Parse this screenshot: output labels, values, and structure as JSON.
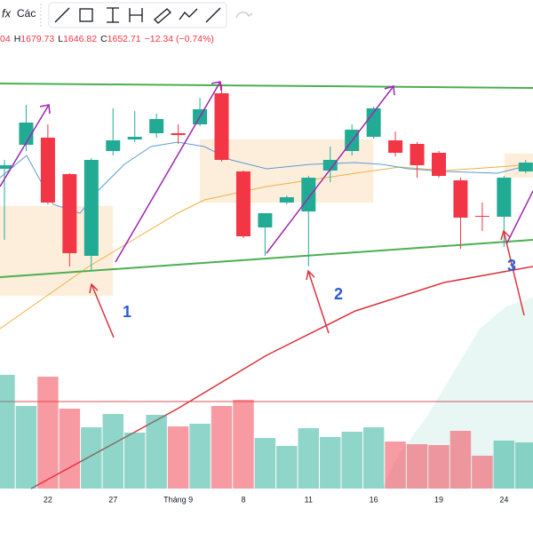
{
  "toolbar": {
    "formula": "fx",
    "label": "Các"
  },
  "header": {
    "open_tail": "04",
    "items": [
      [
        "H",
        "1679.73"
      ],
      [
        "L",
        "1646.82"
      ],
      [
        "C",
        "1652.71"
      ]
    ],
    "change": "−12.34 (−0.74%)"
  },
  "annotations": [
    "1",
    "2",
    "3"
  ],
  "chart_data": {
    "type": "candlestick",
    "categories": [
      null,
      null,
      "22",
      null,
      null,
      "27",
      null,
      null,
      "Tháng 9",
      null,
      null,
      "8",
      null,
      null,
      "11",
      null,
      null,
      "16",
      null,
      null,
      "19",
      null,
      null,
      "24",
      null
    ],
    "open": [
      1650,
      1677,
      1685,
      1644,
      1552,
      1670,
      1683,
      1690,
      1690,
      1700,
      1735,
      1647,
      1584,
      1612,
      1602,
      1648,
      1670,
      1686,
      1682,
      1678,
      1668,
      1637,
      1597,
      1596,
      1647
    ],
    "high": [
      1660,
      1722,
      1700,
      1645,
      1662,
      1718,
      1715,
      1712,
      1700,
      1730,
      1745,
      1648,
      1600,
      1620,
      1642,
      1675,
      1700,
      1720,
      1692,
      1680,
      1670,
      1640,
      1612,
      1642,
      1660
    ],
    "low": [
      1570,
      1670,
      1610,
      1540,
      1535,
      1665,
      1680,
      1685,
      1678,
      1698,
      1658,
      1572,
      1552,
      1610,
      1540,
      1635,
      1665,
      1684,
      1664,
      1640,
      1640,
      1560,
      1580,
      1562,
      1645
    ],
    "close": [
      1654,
      1702,
      1612,
      1555,
      1660,
      1682,
      1686,
      1706,
      1688,
      1717,
      1660,
      1574,
      1600,
      1618,
      1640,
      1660,
      1694,
      1718,
      1668,
      1654,
      1642,
      1595,
      1596,
      1640,
      1657
    ],
    "volume": [
      128,
      93,
      126,
      90,
      69,
      84,
      63,
      83,
      70,
      73,
      93,
      100,
      57,
      48,
      68,
      58,
      64,
      69,
      53,
      50,
      49,
      65,
      37,
      54,
      52
    ],
    "ylim": [
      1430,
      1840
    ],
    "volume_lim": [
      0,
      140
    ],
    "up_color": "#22ab94",
    "down_color": "#f23645"
  }
}
